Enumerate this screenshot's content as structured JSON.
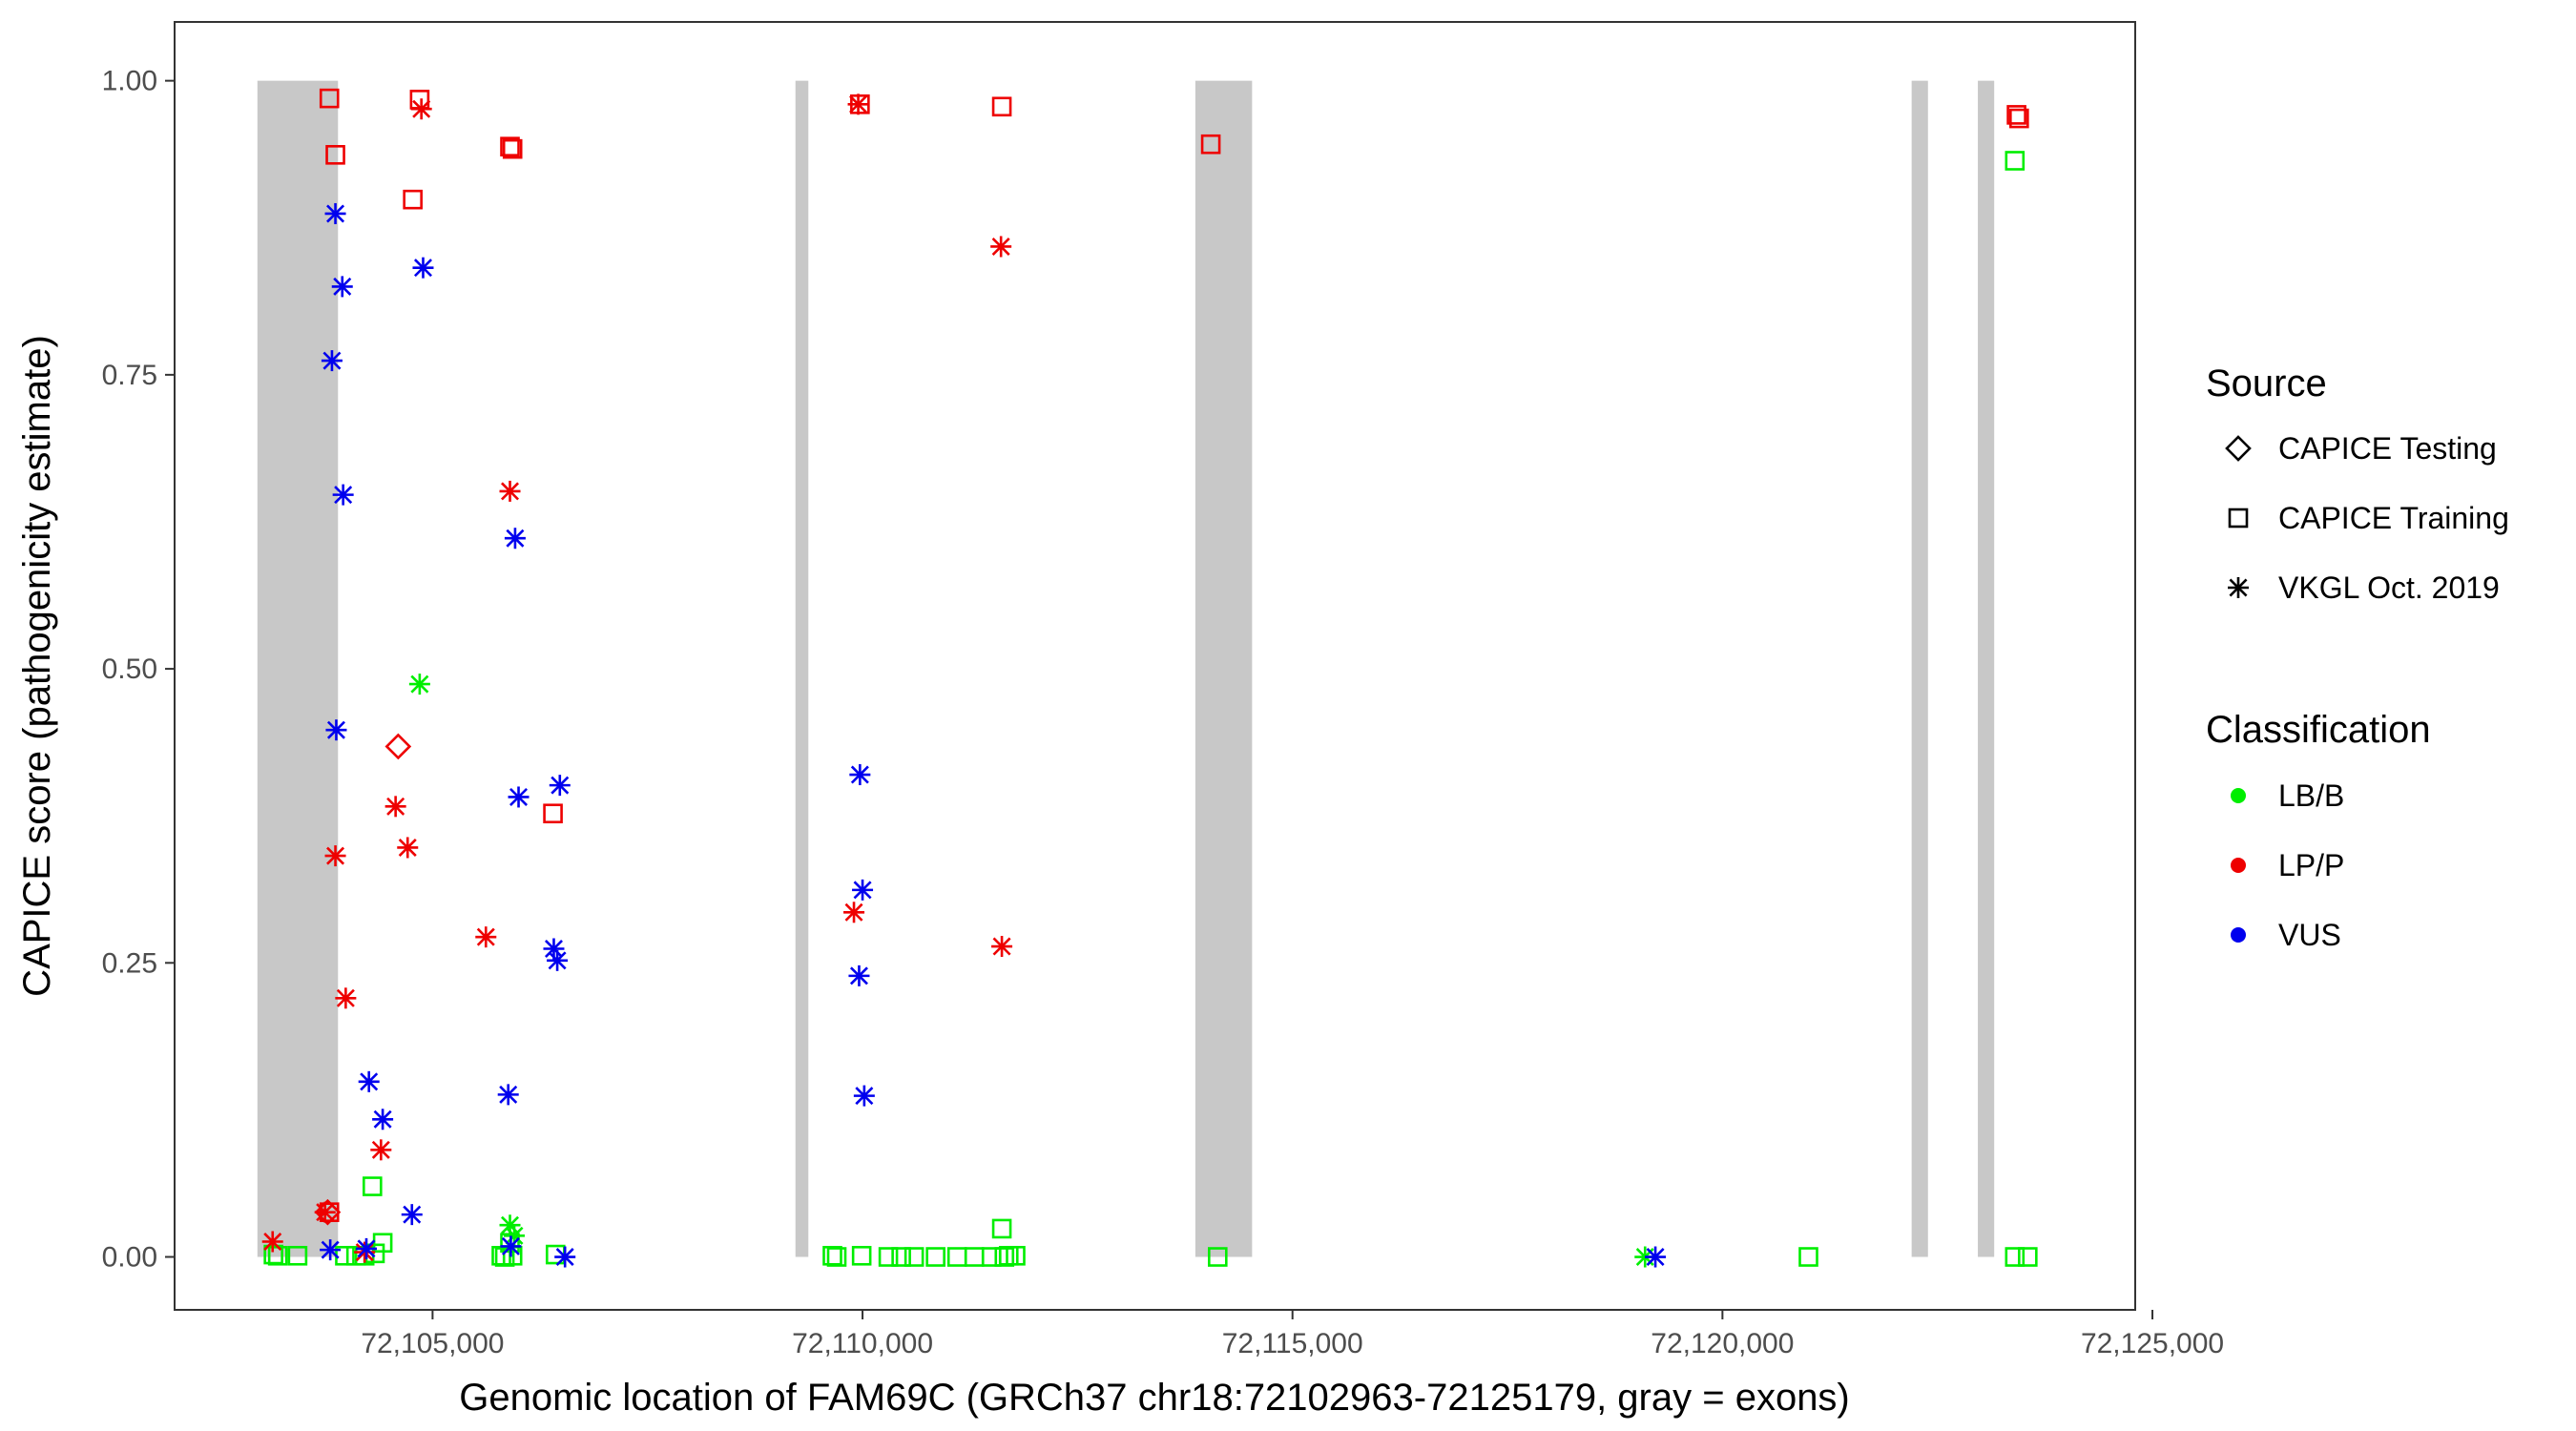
{
  "chart_data": {
    "type": "scatter",
    "title": "",
    "xlabel": "Genomic location of FAM69C (GRCh37 chr18:72102963-72125179, gray = exons)",
    "ylabel": "CAPICE score (pathogenicity estimate)",
    "xlim": [
      72102000,
      72124800
    ],
    "ylim": [
      -0.045,
      1.05
    ],
    "x_ticks": [
      72105000,
      72110000,
      72115000,
      72120000,
      72125000
    ],
    "x_tick_labels": [
      "72,105,000",
      "72,110,000",
      "72,115,000",
      "72,120,000",
      "72,125,000"
    ],
    "y_ticks": [
      0.0,
      0.25,
      0.5,
      0.75,
      1.0
    ],
    "y_tick_labels": [
      "0.00",
      "0.25",
      "0.50",
      "0.75",
      "1.00"
    ],
    "grid": false,
    "exons_gray": [
      [
        72102963,
        72103900
      ],
      [
        72109220,
        72109370
      ],
      [
        72113870,
        72114530
      ],
      [
        72122200,
        72122390
      ],
      [
        72122970,
        72123160
      ]
    ],
    "colors": {
      "LB/B": "#00ee00",
      "LP/P": "#ee0000",
      "VUS": "#0000ee",
      "exon": "#c8c8c8"
    },
    "legend": {
      "position": "right",
      "source_title": "Source",
      "source_items": [
        {
          "label": "CAPICE Testing",
          "shape": "diamond"
        },
        {
          "label": "CAPICE Training",
          "shape": "square"
        },
        {
          "label": "VKGL Oct. 2019",
          "shape": "asterisk"
        }
      ],
      "class_title": "Classification",
      "class_items": [
        {
          "label": "LB/B",
          "key": "LB/B"
        },
        {
          "label": "LP/P",
          "key": "LP/P"
        },
        {
          "label": "VUS",
          "key": "VUS"
        }
      ]
    },
    "series": [
      {
        "name": "LB/B",
        "source": "CAPICE Training",
        "shape": "square",
        "x": [
          72103150,
          72103200,
          72103430,
          72103980,
          72104110,
          72104330,
          72104420,
          72104300,
          72104210,
          72105800,
          72105840,
          72105900,
          72105930,
          72106430,
          72109650,
          72109700,
          72109990,
          72110300,
          72110450,
          72110600,
          72110850,
          72111100,
          72111300,
          72111500,
          72111650,
          72111700,
          72111780,
          72111620,
          72114130,
          72121000,
          72123400,
          72123550,
          72123400
        ],
        "y": [
          0.002,
          0.001,
          0.001,
          0.001,
          0.001,
          0.003,
          0.012,
          0.06,
          0.001,
          0.001,
          0.0,
          0.012,
          0.001,
          0.002,
          0.001,
          0.0,
          0.001,
          0.0,
          0.0,
          0.0,
          0.0,
          0.0,
          0.0,
          0.0,
          0.0,
          0.001,
          0.001,
          0.024,
          0.0,
          0.0,
          0.0,
          0.0,
          0.932
        ]
      },
      {
        "name": "LB/B",
        "source": "VKGL Oct. 2019",
        "shape": "asterisk",
        "x": [
          72104850,
          72105900,
          72105950,
          72119100
        ],
        "y": [
          0.487,
          0.027,
          0.018,
          0.0
        ]
      },
      {
        "name": "LP/P",
        "source": "CAPICE Training",
        "shape": "square",
        "x": [
          72103800,
          72103870,
          72104770,
          72104850,
          72105900,
          72105930,
          72106400,
          72109970,
          72111620,
          72114050,
          72123420,
          72123450,
          72103800
        ],
        "y": [
          0.985,
          0.937,
          0.899,
          0.984,
          0.944,
          0.942,
          0.377,
          0.98,
          0.978,
          0.946,
          0.971,
          0.968,
          0.038
        ]
      },
      {
        "name": "LP/P",
        "source": "CAPICE Testing",
        "shape": "diamond",
        "x": [
          72104600,
          72103780
        ],
        "y": [
          0.434,
          0.038
        ]
      },
      {
        "name": "LP/P",
        "source": "VKGL Oct. 2019",
        "shape": "asterisk",
        "x": [
          72104870,
          72105900,
          72105620,
          72104570,
          72104710,
          72103870,
          72103990,
          72104400,
          72103750,
          72103140,
          72104210,
          72109950,
          72109900,
          72111610,
          72111620
        ],
        "y": [
          0.976,
          0.651,
          0.272,
          0.383,
          0.348,
          0.341,
          0.22,
          0.091,
          0.038,
          0.013,
          0.004,
          0.98,
          0.293,
          0.859,
          0.264
        ]
      },
      {
        "name": "VUS",
        "source": "VKGL Oct. 2019",
        "shape": "asterisk",
        "x": [
          72103870,
          72103950,
          72103830,
          72103960,
          72103880,
          72104890,
          72105960,
          72106000,
          72106480,
          72106410,
          72106450,
          72105880,
          72104260,
          72104420,
          72104760,
          72103810,
          72104230,
          72105910,
          72106540,
          72109970,
          72110000,
          72109960,
          72110020,
          72119220
        ],
        "y": [
          0.887,
          0.825,
          0.762,
          0.648,
          0.448,
          0.841,
          0.611,
          0.391,
          0.401,
          0.262,
          0.252,
          0.138,
          0.149,
          0.117,
          0.036,
          0.006,
          0.007,
          0.009,
          0.0,
          0.41,
          0.312,
          0.239,
          0.137,
          0.0
        ]
      }
    ]
  }
}
